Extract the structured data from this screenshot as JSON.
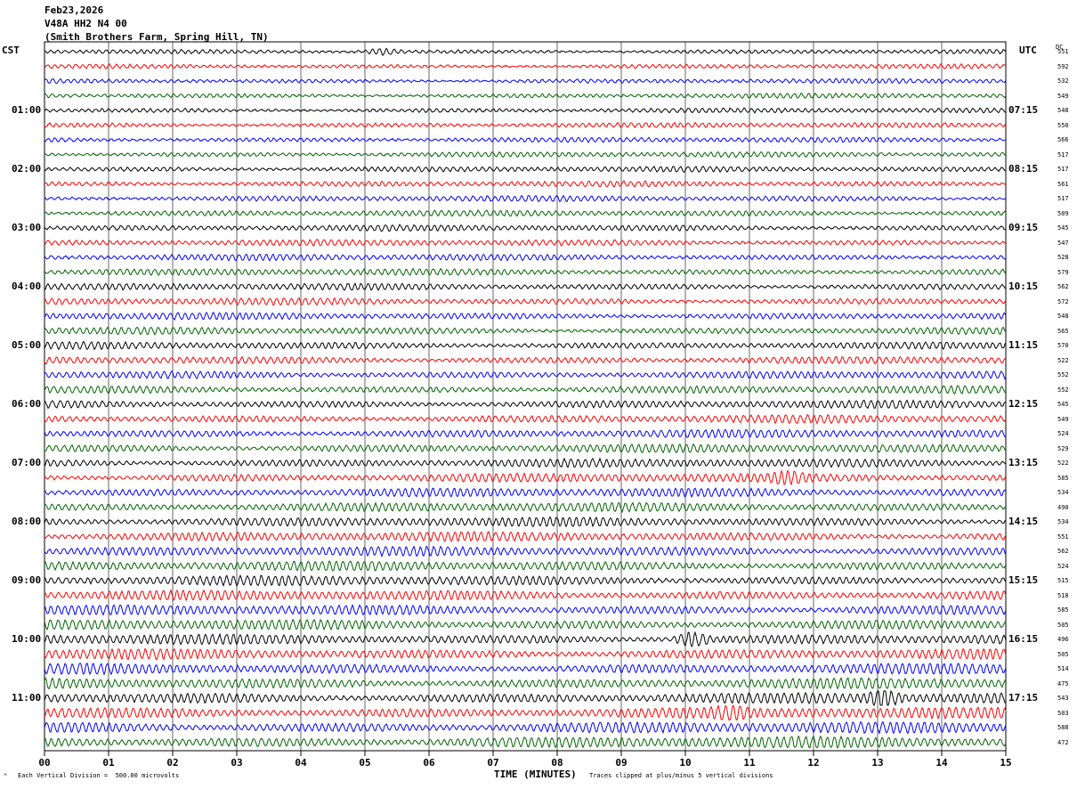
{
  "header": {
    "date": "Feb23,2026",
    "station": "V48A HH2 N4 00",
    "location": "(Smith Brothers Farm, Spring Hill, TN)"
  },
  "left_timezone": "CST",
  "right_timezone": "UTC",
  "dc_header": "DC",
  "footer": {
    "vertical_division": "Each Vertical Division =  500.00 microvolts",
    "xlabel": "TIME (MINUTES)",
    "clipping": "Traces clipped at plus/minus 5 vertical divisions"
  },
  "colors": {
    "trace_cycle": [
      "#000000",
      "#ff0000",
      "#0000ff",
      "#006400"
    ],
    "grid": "#000000",
    "background": "#ffffff"
  },
  "chart_data": {
    "type": "line",
    "description": "helicorder",
    "xlabel": "TIME (MINUTES)",
    "x_ticks": [
      "00",
      "01",
      "02",
      "03",
      "04",
      "05",
      "06",
      "07",
      "08",
      "09",
      "10",
      "11",
      "12",
      "13",
      "14",
      "15"
    ],
    "xlim": [
      0,
      15
    ],
    "minutes_per_line": 15,
    "lines_total": 48,
    "left_hour_labels": [
      "01:00",
      "02:00",
      "03:00",
      "04:00",
      "05:00",
      "06:00",
      "07:00",
      "08:00",
      "09:00",
      "10:00",
      "11:00"
    ],
    "right_hour_labels": [
      "07:15",
      "08:15",
      "09:15",
      "10:15",
      "11:15",
      "12:15",
      "13:15",
      "14:15",
      "15:15",
      "16:15",
      "17:15"
    ],
    "dc_offsets": [
      551,
      592,
      532,
      549,
      548,
      550,
      566,
      517,
      517,
      561,
      517,
      509,
      545,
      547,
      528,
      579,
      562,
      572,
      548,
      565,
      570,
      522,
      552,
      552,
      545,
      549,
      524,
      529,
      522,
      585,
      534,
      490,
      534,
      551,
      562,
      524,
      515,
      518,
      585,
      505,
      496,
      505,
      514,
      475,
      543,
      503,
      588,
      472
    ],
    "events": [
      {
        "line": 40,
        "minute": 10.1,
        "amplitude": "large"
      },
      {
        "line": 44,
        "minute": 13.1,
        "amplitude": "large"
      },
      {
        "line": 45,
        "minute": 10.7,
        "amplitude": "medium"
      },
      {
        "line": 29,
        "minute": 11.6,
        "amplitude": "medium"
      },
      {
        "line": 0,
        "minute": 5.3,
        "amplitude": "small"
      }
    ],
    "grid": true
  }
}
